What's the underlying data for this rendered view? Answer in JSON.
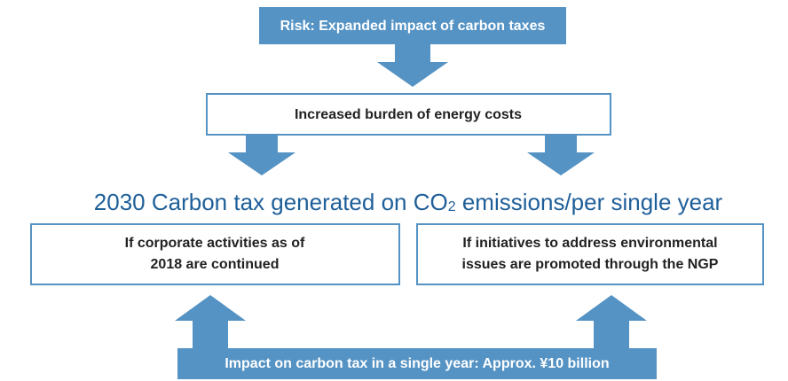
{
  "risk": "Risk: Expanded impact of carbon taxes",
  "burden": "Increased burden of energy costs",
  "heading": {
    "before": "2030 Carbon tax generated on CO",
    "subscript": "2",
    "after": " emissions/per single year"
  },
  "scenarios": [
    {
      "lines": [
        "If corporate activities as of",
        "2018 are continued"
      ]
    },
    {
      "lines": [
        "If initiatives to address environmental",
        "issues are promoted through the NGP"
      ]
    }
  ],
  "impact": "Impact on carbon tax in a single year: Approx. ¥10 billion"
}
